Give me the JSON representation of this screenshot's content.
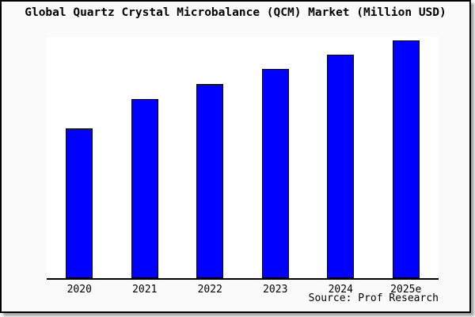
{
  "title": "Global Quartz Crystal Microbalance (QCM) Market (Million USD)",
  "source_credit": "Source: Prof Research",
  "colors": {
    "bar_fill": "#0000ff",
    "bar_border": "#000000",
    "canvas_background": "#fafafa",
    "plot_background": "#ffffff",
    "axis_line": "#000000",
    "frame_border": "#000000",
    "text": "#000000"
  },
  "chart_data": {
    "type": "bar",
    "title": "Global Quartz Crystal Microbalance (QCM) Market (Million USD)",
    "categories": [
      "2020",
      "2021",
      "2022",
      "2023",
      "2024",
      "2025e"
    ],
    "values": [
      63,
      75.3,
      81.7,
      88,
      94,
      100
    ],
    "value_scale": "relative bar heights, tallest bar (2025e) = 100; chart shows no y-axis scale",
    "xlabel": "",
    "ylabel": "",
    "ylim": [
      0,
      100
    ],
    "grid": false,
    "legend": "none",
    "y_axis_visible": false,
    "source": "Source: Prof Research"
  }
}
